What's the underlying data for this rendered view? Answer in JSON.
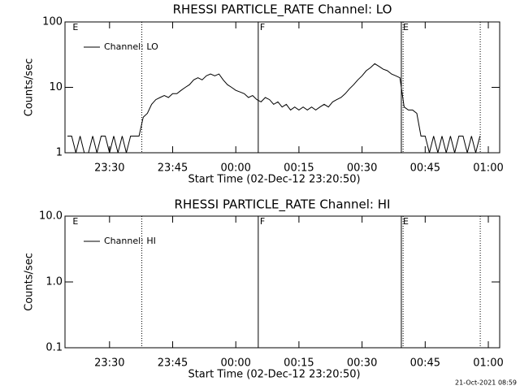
{
  "chart_data": [
    {
      "type": "line",
      "title": "RHESSI PARTICLE_RATE Channel: LO",
      "xlabel": "Start Time (02-Dec-12 23:20:50)",
      "ylabel": "Counts/sec",
      "log_y": true,
      "legend": "upper left",
      "color": "#000000",
      "xlim": [
        "23:19:25",
        "01:02:42"
      ],
      "xticks": [
        "23:30",
        "23:45",
        "00:00",
        "00:15",
        "00:30",
        "00:45",
        "01:00"
      ],
      "ylim": [
        1,
        100
      ],
      "yticks": [
        1,
        10,
        100
      ],
      "markers": [
        {
          "time": "23:20:50",
          "label": "E"
        },
        {
          "time": "23:37:40",
          "style": "dotted"
        },
        {
          "time": "00:05:20",
          "style": "solid",
          "label": "F"
        },
        {
          "time": "00:39:20",
          "style": "solid",
          "label": "E"
        },
        {
          "time": "00:39:45",
          "style": "dotted"
        },
        {
          "time": "00:58:05",
          "style": "dotted"
        }
      ],
      "x": [
        "23:20",
        "23:21",
        "23:22",
        "23:23",
        "23:24",
        "23:25",
        "23:26",
        "23:27",
        "23:28",
        "23:29",
        "23:30",
        "23:31",
        "23:32",
        "23:33",
        "23:34",
        "23:35",
        "23:36",
        "23:37",
        "23:38",
        "23:39",
        "23:40",
        "23:41",
        "23:42",
        "23:43",
        "23:44",
        "23:45",
        "23:46",
        "23:47",
        "23:48",
        "23:49",
        "23:50",
        "23:51",
        "23:52",
        "23:53",
        "23:54",
        "23:55",
        "23:56",
        "23:57",
        "23:58",
        "23:59",
        "00:00",
        "00:01",
        "00:02",
        "00:03",
        "00:04",
        "00:05",
        "00:06",
        "00:07",
        "00:08",
        "00:09",
        "00:10",
        "00:11",
        "00:12",
        "00:13",
        "00:14",
        "00:15",
        "00:16",
        "00:17",
        "00:18",
        "00:19",
        "00:20",
        "00:21",
        "00:22",
        "00:23",
        "00:24",
        "00:25",
        "00:26",
        "00:27",
        "00:28",
        "00:29",
        "00:30",
        "00:31",
        "00:32",
        "00:33",
        "00:34",
        "00:35",
        "00:36",
        "00:37",
        "00:38",
        "00:39",
        "00:40",
        "00:41",
        "00:42",
        "00:43",
        "00:44",
        "00:45",
        "00:46",
        "00:47",
        "00:48",
        "00:49",
        "00:50",
        "00:51",
        "00:52",
        "00:53",
        "00:54",
        "00:55",
        "00:56",
        "00:57",
        "00:58"
      ],
      "series": [
        {
          "name": "Channel: LO",
          "color": "#000000",
          "values": [
            1.8,
            1.8,
            1,
            1.8,
            1,
            1,
            1.8,
            1,
            1.8,
            1.8,
            1,
            1.8,
            1,
            1.8,
            1,
            1.8,
            1.8,
            1.8,
            3.5,
            4,
            5.5,
            6.5,
            7,
            7.5,
            7,
            8,
            8,
            9,
            10,
            11,
            13,
            14,
            13,
            15,
            16,
            15,
            16,
            13,
            11,
            10,
            9,
            8.5,
            8,
            7,
            7.5,
            6.5,
            6,
            7,
            6.5,
            5.5,
            6,
            5,
            5.5,
            4.5,
            5,
            4.5,
            5,
            4.5,
            5,
            4.5,
            5,
            5.5,
            5,
            6,
            6.5,
            7,
            8,
            9.5,
            11,
            13,
            15,
            18,
            20,
            23,
            21,
            19,
            18,
            16,
            15,
            14,
            5,
            4.5,
            4.5,
            4,
            1.8,
            1.8,
            1,
            1.8,
            1,
            1.8,
            1,
            1.8,
            1,
            1.8,
            1.8,
            1,
            1.8,
            1,
            1.8
          ]
        }
      ]
    },
    {
      "type": "line",
      "title": "RHESSI PARTICLE_RATE Channel: HI",
      "xlabel": "Start Time (02-Dec-12 23:20:50)",
      "ylabel": "Counts/sec",
      "log_y": true,
      "legend": "upper left",
      "color": "#000000",
      "xlim": [
        "23:19:25",
        "01:02:42"
      ],
      "xticks": [
        "23:30",
        "23:45",
        "00:00",
        "00:15",
        "00:30",
        "00:45",
        "01:00"
      ],
      "ylim": [
        0.1,
        10
      ],
      "yticks": [
        0.1,
        {
          "value": 1,
          "label": "1.0"
        },
        {
          "value": 10,
          "label": "10.0"
        }
      ],
      "markers": [
        {
          "time": "23:20:50",
          "label": "E"
        },
        {
          "time": "23:37:40",
          "style": "dotted"
        },
        {
          "time": "00:05:20",
          "style": "solid",
          "label": "F"
        },
        {
          "time": "00:39:20",
          "style": "solid",
          "label": "E"
        },
        {
          "time": "00:39:45",
          "style": "dotted"
        },
        {
          "time": "00:58:05",
          "style": "dotted"
        }
      ],
      "x": [],
      "series": [
        {
          "name": "Channel: HI",
          "color": "#000000",
          "values": []
        }
      ]
    }
  ],
  "footer": "21-Oct-2021 08:59"
}
